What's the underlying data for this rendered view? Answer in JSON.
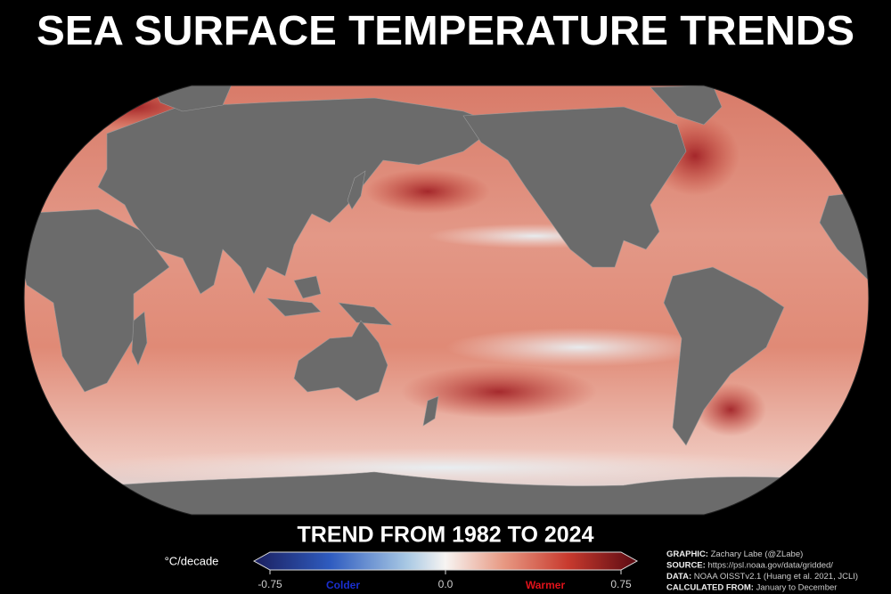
{
  "header": {
    "title": "SEA SURFACE TEMPERATURE TRENDS"
  },
  "colorbar": {
    "title": "TREND FROM 1982 TO 2024",
    "unit": "°C/decade",
    "lim": [
      -0.75,
      0.75
    ],
    "ticks": [
      -0.75,
      {
        "value": 0,
        "label": "0.0"
      },
      0.75
    ],
    "low_label": "Colder",
    "high_label": "Warmer"
  },
  "credits": [
    {
      "label": "GRAPHIC:",
      "text": "Zachary Labe (@ZLabe)"
    },
    {
      "label": "SOURCE:",
      "text": "https://psl.noaa.gov/data/gridded/"
    },
    {
      "label": "DATA:",
      "text": "NOAA OISSTv2.1 (Huang et al. 2021, JCLI)"
    },
    {
      "label": "CALCULATED FROM:",
      "text": "January to December"
    }
  ]
}
